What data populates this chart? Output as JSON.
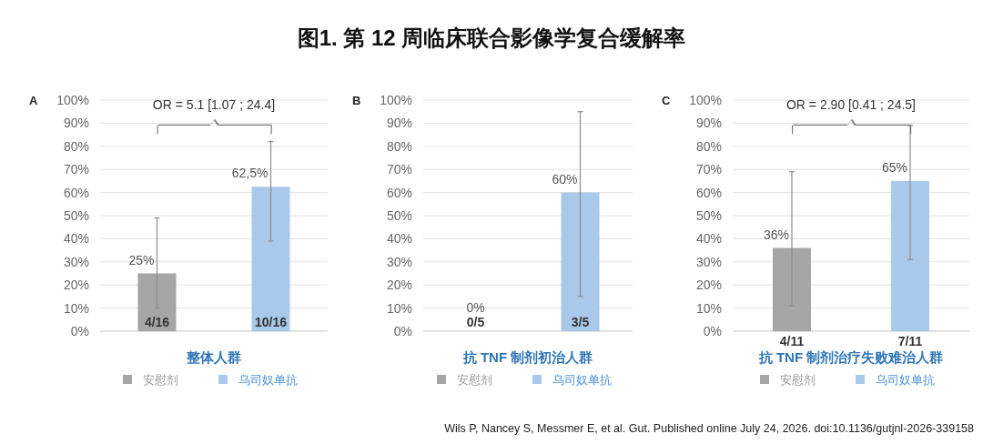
{
  "chart_data": [
    {
      "type": "other",
      "title": "图1. 第 12 周临床联合影像学复合缓解率",
      "annotations": [
        "Wils P, Nancey S, Messmer E, et al. Gut. Published online July 24, 2026. doi:10.1136/gutjnl-2026-339158"
      ]
    },
    {
      "type": "bar",
      "title": "A",
      "xlabel": "整体人群",
      "categories": [
        null,
        null
      ],
      "stacked": true,
      "ylim": [
        0,
        100
      ],
      "yticks": [
        {
          "value": 0,
          "label": "0%"
        },
        {
          "value": 10,
          "label": "10%"
        },
        {
          "value": 20,
          "label": "20%"
        },
        {
          "value": 30,
          "label": "30%"
        },
        {
          "value": 40,
          "label": "40%"
        },
        {
          "value": 50,
          "label": "50%"
        },
        {
          "value": 60,
          "label": "60%"
        },
        {
          "value": 70,
          "label": "70%"
        },
        {
          "value": 80,
          "label": "80%"
        },
        {
          "value": 90,
          "label": "90%"
        },
        {
          "value": 100,
          "label": "100%"
        }
      ],
      "grid": "y",
      "legend": "bottom",
      "series": [
        {
          "name": "安慰剂",
          "color": "#a6a6a6",
          "values": [
            25,
            null
          ],
          "errors": [
            [
              10,
              49
            ],
            null
          ],
          "value_labels": [
            "25%",
            null
          ]
        },
        {
          "name": "乌司奴单抗",
          "color": "#a9c9ea",
          "values": [
            null,
            62.5
          ],
          "errors": [
            null,
            [
              39,
              82
            ]
          ],
          "value_labels": [
            null,
            "62,5%"
          ]
        }
      ],
      "annotations": [
        "OR = 5.1 [1.07 ; 24.4]",
        "4/16",
        "10/16"
      ]
    },
    {
      "type": "bar",
      "title": "B",
      "xlabel": "抗 TNF 制剂初治人群",
      "categories": [
        null,
        null
      ],
      "stacked": true,
      "ylim": [
        0,
        100
      ],
      "yticks": [
        {
          "value": 0,
          "label": "0%"
        },
        {
          "value": 10,
          "label": "10%"
        },
        {
          "value": 20,
          "label": "20%"
        },
        {
          "value": 30,
          "label": "30%"
        },
        {
          "value": 40,
          "label": "40%"
        },
        {
          "value": 50,
          "label": "50%"
        },
        {
          "value": 60,
          "label": "60%"
        },
        {
          "value": 70,
          "label": "70%"
        },
        {
          "value": 80,
          "label": "80%"
        },
        {
          "value": 90,
          "label": "90%"
        },
        {
          "value": 100,
          "label": "100%"
        }
      ],
      "grid": "y",
      "legend": "bottom",
      "series": [
        {
          "name": "安慰剂",
          "color": "#a6a6a6",
          "values": [
            0,
            null
          ],
          "value_labels": [
            "0%",
            null
          ]
        },
        {
          "name": "乌司奴单抗",
          "color": "#a9c9ea",
          "values": [
            null,
            60
          ],
          "errors": [
            null,
            [
              15,
              95
            ]
          ],
          "value_labels": [
            null,
            "60%"
          ]
        }
      ],
      "annotations": [
        "0/5",
        "3/5"
      ]
    },
    {
      "type": "bar",
      "title": "C",
      "xlabel": "抗 TNF 制剂治疗失败难治人群",
      "categories": [
        "4/11",
        "7/11"
      ],
      "stacked": true,
      "ylim": [
        0,
        100
      ],
      "yticks": [
        {
          "value": 0,
          "label": "0%"
        },
        {
          "value": 10,
          "label": "10%"
        },
        {
          "value": 20,
          "label": "20%"
        },
        {
          "value": 30,
          "label": "30%"
        },
        {
          "value": 40,
          "label": "40%"
        },
        {
          "value": 50,
          "label": "50%"
        },
        {
          "value": 60,
          "label": "60%"
        },
        {
          "value": 70,
          "label": "70%"
        },
        {
          "value": 80,
          "label": "80%"
        },
        {
          "value": 90,
          "label": "90%"
        },
        {
          "value": 100,
          "label": "100%"
        }
      ],
      "grid": "y",
      "legend": "bottom",
      "series": [
        {
          "name": "安慰剂",
          "color": "#a6a6a6",
          "values": [
            36,
            null
          ],
          "errors": [
            [
              11,
              69
            ],
            null
          ],
          "value_labels": [
            "36%",
            null
          ]
        },
        {
          "name": "乌司奴单抗",
          "color": "#a9c9ea",
          "values": [
            null,
            65
          ],
          "errors": [
            null,
            [
              31,
              89
            ]
          ],
          "value_labels": [
            null,
            "65%"
          ]
        }
      ],
      "annotations": [
        "OR = 2.90 [0.41 ; 24.5]"
      ]
    }
  ]
}
